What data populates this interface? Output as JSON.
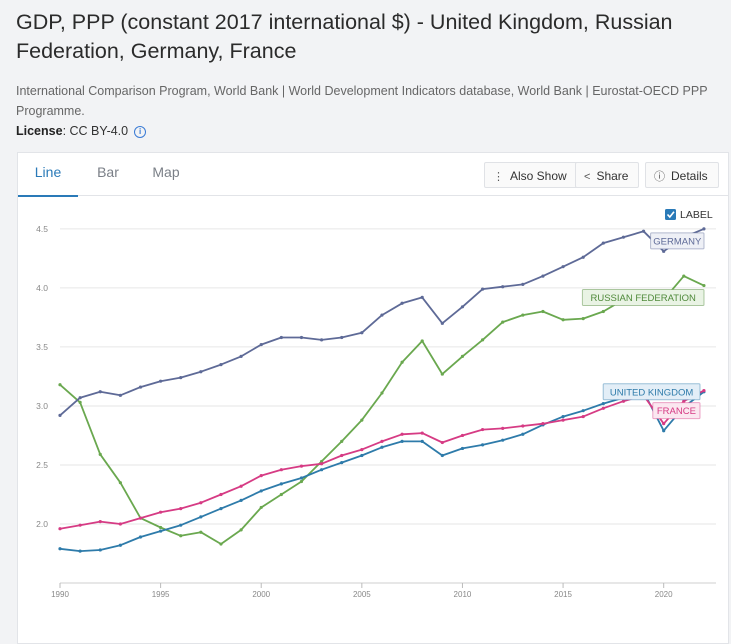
{
  "header": {
    "title": "GDP, PPP (constant 2017 international $) - United Kingdom, Russian Federation, Germany, France",
    "source": "International Comparison Program, World Bank | World Development Indicators database, World Bank | Eurostat-OECD PPP Programme.",
    "license_label": "License",
    "license_value": ": CC BY-4.0"
  },
  "tabs": [
    {
      "label": "Line",
      "active": true
    },
    {
      "label": "Bar",
      "active": false
    },
    {
      "label": "Map",
      "active": false
    }
  ],
  "toolbar": {
    "also_show": "Also Show",
    "share": "Share",
    "details": "Details"
  },
  "label_toggle": "LABEL",
  "colors": {
    "accent": "#2a7ab8",
    "germany": "#5e6a97",
    "russia": "#6aa84f",
    "uk": "#2e7baa",
    "france": "#d63b84"
  },
  "chart_data": {
    "type": "line",
    "title": "GDP, PPP (constant 2017 international $)",
    "xlabel": "",
    "ylabel": "",
    "x": [
      1990,
      1991,
      1992,
      1993,
      1994,
      1995,
      1996,
      1997,
      1998,
      1999,
      2000,
      2001,
      2002,
      2003,
      2004,
      2005,
      2006,
      2007,
      2008,
      2009,
      2010,
      2011,
      2012,
      2013,
      2014,
      2015,
      2016,
      2017,
      2018,
      2019,
      2020,
      2021,
      2022
    ],
    "xticks": [
      "1990",
      "1995",
      "2000",
      "2005",
      "2010",
      "2015",
      "2020"
    ],
    "yticks": [
      "2.0",
      "2.5",
      "3.0",
      "3.5",
      "4.0",
      "4.5"
    ],
    "ylim": [
      1.5,
      4.55
    ],
    "xlim": [
      1990,
      2022.6
    ],
    "grid": true,
    "series": [
      {
        "name": "GERMANY",
        "key": "germany",
        "values": [
          2.92,
          3.07,
          3.12,
          3.09,
          3.16,
          3.21,
          3.24,
          3.29,
          3.35,
          3.42,
          3.52,
          3.58,
          3.58,
          3.56,
          3.58,
          3.62,
          3.77,
          3.87,
          3.92,
          3.7,
          3.84,
          3.99,
          4.01,
          4.03,
          4.1,
          4.18,
          4.26,
          4.38,
          4.43,
          4.48,
          4.31,
          4.43,
          4.5
        ]
      },
      {
        "name": "RUSSIAN FEDERATION",
        "key": "russia",
        "values": [
          3.18,
          3.03,
          2.59,
          2.35,
          2.05,
          1.97,
          1.9,
          1.93,
          1.83,
          1.95,
          2.14,
          2.25,
          2.36,
          2.53,
          2.7,
          2.88,
          3.11,
          3.37,
          3.55,
          3.27,
          3.42,
          3.56,
          3.71,
          3.77,
          3.8,
          3.73,
          3.74,
          3.8,
          3.9,
          3.97,
          3.9,
          4.1,
          4.02
        ]
      },
      {
        "name": "UNITED KINGDOM",
        "key": "uk",
        "values": [
          1.79,
          1.77,
          1.78,
          1.82,
          1.89,
          1.94,
          1.99,
          2.06,
          2.13,
          2.2,
          2.28,
          2.34,
          2.39,
          2.46,
          2.52,
          2.58,
          2.65,
          2.7,
          2.7,
          2.58,
          2.64,
          2.67,
          2.71,
          2.76,
          2.84,
          2.91,
          2.96,
          3.02,
          3.07,
          3.12,
          2.79,
          2.99,
          3.12
        ]
      },
      {
        "name": "FRANCE",
        "key": "france",
        "values": [
          1.96,
          1.99,
          2.02,
          2.0,
          2.05,
          2.1,
          2.13,
          2.18,
          2.25,
          2.32,
          2.41,
          2.46,
          2.49,
          2.51,
          2.58,
          2.63,
          2.7,
          2.76,
          2.77,
          2.69,
          2.75,
          2.8,
          2.81,
          2.83,
          2.85,
          2.88,
          2.91,
          2.98,
          3.04,
          3.09,
          2.85,
          3.04,
          3.13
        ]
      }
    ],
    "series_labels": [
      {
        "key": "germany",
        "text": "GERMANY"
      },
      {
        "key": "russia",
        "text": "RUSSIAN FEDERATION"
      },
      {
        "key": "uk",
        "text": "UNITED KINGDOM"
      },
      {
        "key": "france",
        "text": "FRANCE"
      }
    ]
  }
}
